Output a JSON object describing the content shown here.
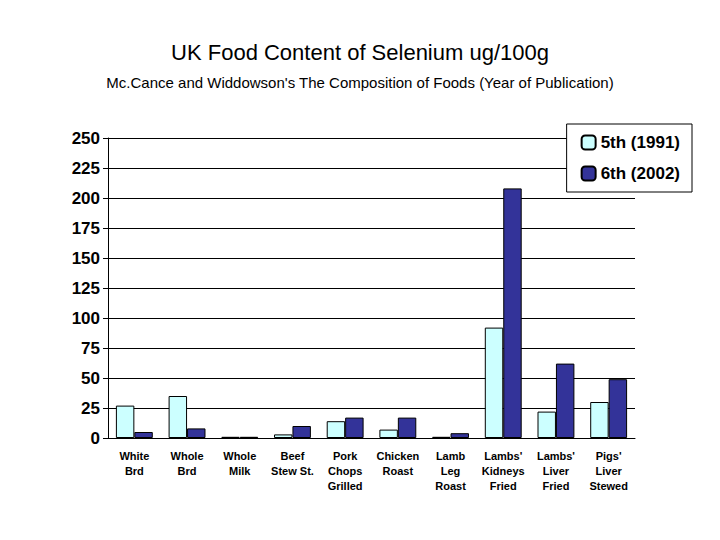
{
  "chart_data": {
    "type": "bar",
    "title": "UK Food Content of Selenium ug/100g",
    "subtitle": "Mc.Cance and Widdowson's The Composition of Foods (Year of Publication)",
    "categories": [
      "White\nBrd",
      "Whole\nBrd",
      "Whole\nMilk",
      "Beef\nStew St.",
      "Pork\nChops\nGrilled",
      "Chicken\nRoast",
      "Lamb\nLeg\nRoast",
      "Lambs'\nKidneys\nFried",
      "Lambs'\nLiver\nFried",
      "Pigs'\nLiver\nStewed"
    ],
    "series": [
      {
        "name": "5th (1991)",
        "color": "#ccffff",
        "values": [
          27,
          35,
          1,
          3,
          14,
          7,
          1,
          92,
          22,
          30
        ]
      },
      {
        "name": "6th (2002)",
        "color": "#333399",
        "values": [
          5,
          8,
          1,
          10,
          17,
          17,
          4,
          208,
          62,
          49
        ]
      }
    ],
    "ylim": [
      0,
      250
    ],
    "yticks": [
      0,
      25,
      50,
      75,
      100,
      125,
      150,
      175,
      200,
      225,
      250
    ],
    "grid": true,
    "legend": "upper right"
  }
}
